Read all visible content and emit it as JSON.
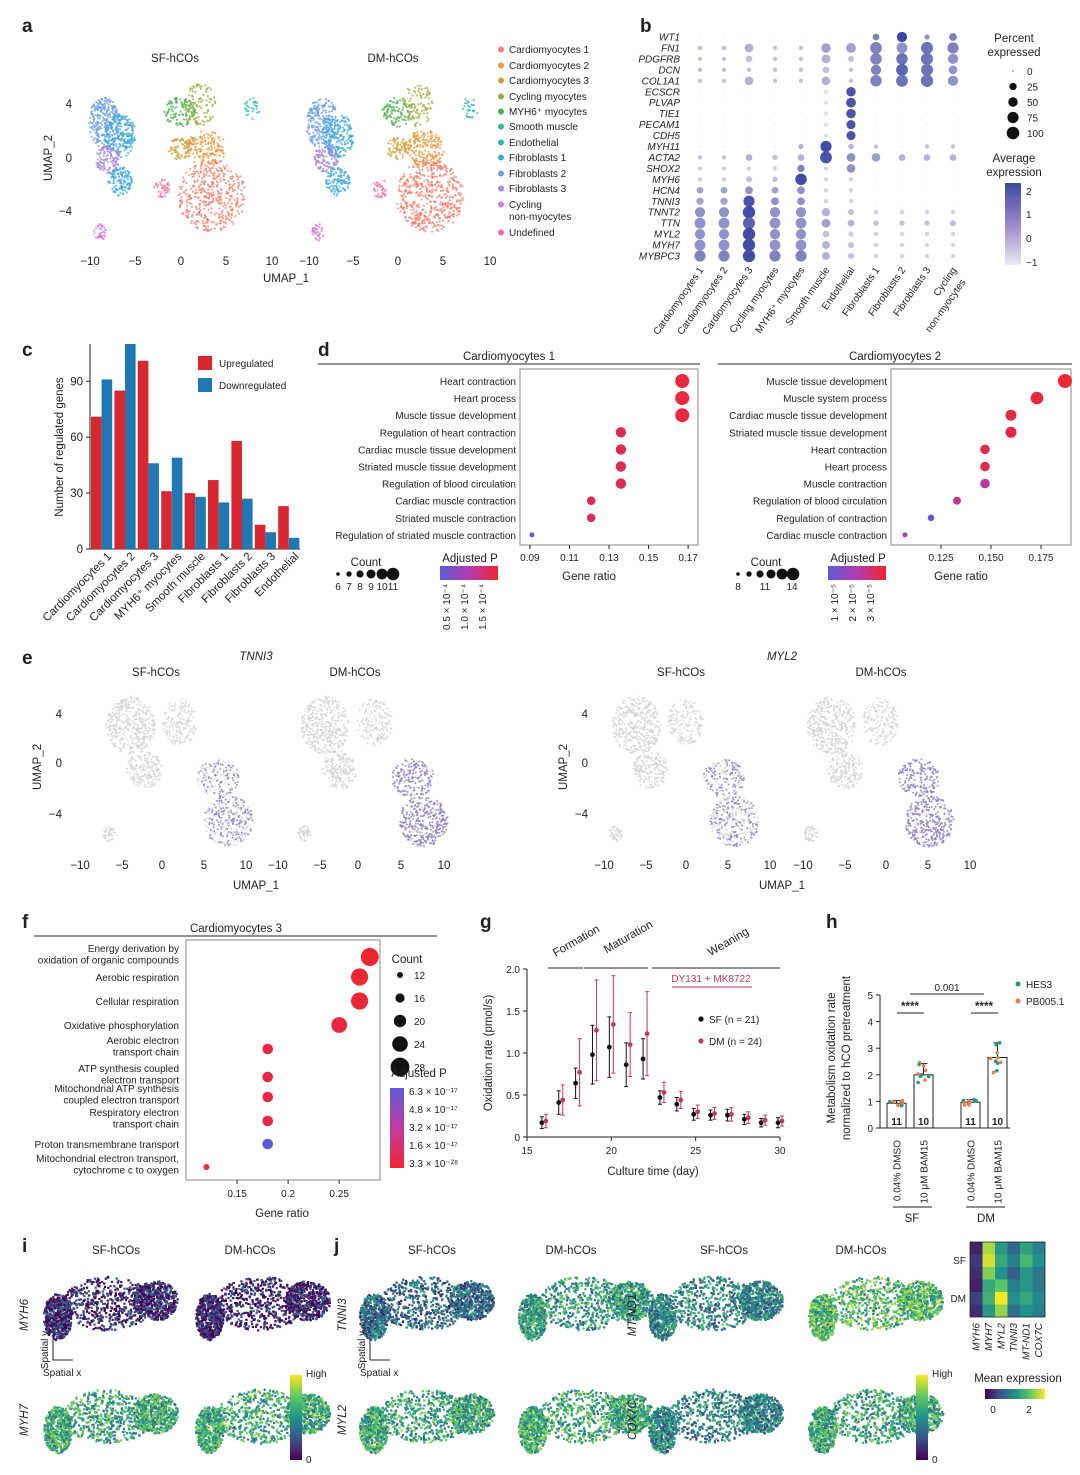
{
  "panels": {
    "a": "a",
    "b": "b",
    "c": "c",
    "d": "d",
    "e": "e",
    "f": "f",
    "g": "g",
    "h": "h",
    "i": "i",
    "j": "j"
  },
  "panel_a": {
    "titles": [
      "SF-hCOs",
      "DM-hCOs"
    ],
    "xlabel": "UMAP_1",
    "ylabel": "UMAP_2",
    "xticks": [
      "−10",
      "−5",
      "0",
      "5",
      "10"
    ],
    "yticks": [
      "4",
      "0",
      "−4"
    ],
    "legend": [
      {
        "label": "Cardiomyocytes 1",
        "color": "#f08070"
      },
      {
        "label": "Cardiomyocytes 2",
        "color": "#e89a3c"
      },
      {
        "label": "Cardiomyocytes 3",
        "color": "#c9a23a"
      },
      {
        "label": "Cycling myocytes",
        "color": "#9aac3a"
      },
      {
        "label": "MYH6⁺ myocytes",
        "color": "#4cb050"
      },
      {
        "label": "Smooth muscle",
        "color": "#3fb38b"
      },
      {
        "label": "Endothelial",
        "color": "#2fb5b9"
      },
      {
        "label": "Fibroblasts 1",
        "color": "#3aa8df"
      },
      {
        "label": "Fibroblasts 2",
        "color": "#6e9fe6"
      },
      {
        "label": "Fibroblasts 3",
        "color": "#a58ae2"
      },
      {
        "label": "Cycling",
        "color": "#d57ad6"
      },
      {
        "label": "non-myocytes",
        "color": "#d57ad6"
      },
      {
        "label": "Undefined",
        "color": "#ec70a6"
      }
    ]
  },
  "panel_b": {
    "genes": [
      "WT1",
      "FN1",
      "PDGFRB",
      "DCN",
      "COL1A1",
      "ECSCR",
      "PLVAP",
      "TIE1",
      "PECAM1",
      "CDH5",
      "MYH11",
      "ACTA2",
      "SHOX2",
      "MYH6",
      "HCN4",
      "TNNI3",
      "TNNT2",
      "TTN",
      "MYL2",
      "MYH7",
      "MYBPC3"
    ],
    "clusters": [
      "Cardiomyocytes 1",
      "Cardiomyocytes 2",
      "Cardiomyocytes 3",
      "Cycling myocytes",
      "MYH6⁺ myocytes",
      "Smooth muscle",
      "Endothelial",
      "Fibroblasts 1",
      "Fibroblasts 2",
      "Fibroblasts 3",
      "Cycling",
      "non-myocytes"
    ],
    "percent_title": [
      "Percent",
      "expressed"
    ],
    "percent_legend": [
      "0",
      "25",
      "50",
      "75",
      "100"
    ],
    "avg_title": [
      "Average",
      "expression"
    ],
    "avg_ticks": [
      "2",
      "1",
      "0",
      "−1"
    ]
  },
  "panel_c": {
    "ylabel": "Number of regulated genes",
    "yticks": [
      "90",
      "60",
      "30",
      "0"
    ],
    "legend": [
      {
        "label": "Upregulated",
        "color": "#d7282f"
      },
      {
        "label": "Downregulated",
        "color": "#1f78b4"
      }
    ]
  },
  "panel_d": {
    "left_title": "Cardiomyocytes 1",
    "right_title": "Cardiomyocytes 2",
    "xlabel": "Gene ratio",
    "left_xticks": [
      "0.09",
      "0.11",
      "0.13",
      "0.15",
      "0.17"
    ],
    "right_xticks": [
      "0.125",
      "0.150",
      "0.175"
    ],
    "count_label": "Count",
    "padj_label": "Adjusted P",
    "left_count_ticks": [
      "6",
      "7",
      "8",
      "9",
      "10",
      "11"
    ],
    "right_count_ticks": [
      "8",
      "11",
      "14"
    ],
    "left_p_ticks": [
      "0.5 × 10⁻⁴",
      "1.0 × 10⁻⁴",
      "1.5 × 10⁻⁴"
    ],
    "right_p_ticks": [
      "1 × 10⁻⁵",
      "2 × 10⁻⁵",
      "3 × 10⁻⁵"
    ]
  },
  "panel_e": {
    "gene1": "TNNI3",
    "gene2": "MYL2",
    "titles": [
      "SF-hCOs",
      "DM-hCOs",
      "SF-hCOs",
      "DM-hCOs"
    ],
    "xlabel": "UMAP_1",
    "ylabel": "UMAP_2",
    "xticks": [
      "−10",
      "−5",
      "0",
      "5",
      "10"
    ],
    "yticks": [
      "4",
      "0",
      "−4"
    ]
  },
  "panel_f": {
    "title": "Cardiomyocytes 3",
    "xlabel": "Gene ratio",
    "xticks": [
      "0.15",
      "0.2",
      "0.25"
    ],
    "count_label": "Count",
    "count_ticks": [
      "12",
      "16",
      "20",
      "24",
      "28"
    ],
    "padj_label": "Adjusted P",
    "p_ticks": [
      "6.3 × 10⁻¹⁷",
      "4.8 × 10⁻¹⁷",
      "3.2 × 10⁻¹⁷",
      "1.6 × 10⁻¹⁷",
      "3.3 × 10⁻²⁸"
    ]
  },
  "panel_g": {
    "phases": [
      "Formation",
      "Maturation",
      "Weaning"
    ],
    "treatment": "DY131 + MK8722",
    "xlabel": "Culture time (day)",
    "ylabel": "Oxidation rate (pmol/s)",
    "xticks": [
      "15",
      "20",
      "25",
      "30"
    ],
    "yticks": [
      "2.0",
      "1.5",
      "1.0",
      "0.5",
      "0"
    ],
    "legend": [
      {
        "label": "SF (n = 21)",
        "color": "#111111"
      },
      {
        "label": "DM (n = 24)",
        "color": "#c0395a"
      }
    ]
  },
  "panel_h": {
    "ylabel": [
      "Metabolism oxidation rate",
      "normalized to hCO pretreatment"
    ],
    "yticks": [
      "5",
      "4",
      "3",
      "2",
      "1",
      "0"
    ],
    "legend": [
      {
        "label": "HES3",
        "color": "#1a9c7a"
      },
      {
        "label": "PB005.1",
        "color": "#ef7c52"
      }
    ],
    "pval": "0.001",
    "stars": "****",
    "groups": [
      "SF",
      "DM"
    ],
    "conditions": [
      "0.04% DMSO",
      "10 μM BAM15"
    ]
  },
  "panel_i": {
    "titles": [
      "SF-hCOs",
      "DM-hCOs"
    ],
    "genes": [
      "MYH6",
      "MYH7"
    ],
    "spatial_y": "Spatial y",
    "spatial_x": "Spatial x",
    "scale_high": "High",
    "scale_low": "0"
  },
  "panel_j": {
    "titles": [
      "SF-hCOs",
      "DM-hCOs",
      "SF-hCOs",
      "DM-hCOs"
    ],
    "genes": [
      "TNNI3",
      "MYL2",
      "MT-ND1",
      "COX7C"
    ],
    "spatial_y": "Spatial y",
    "spatial_x": "Spatial x",
    "scale_high": "High",
    "scale_low": "0",
    "heatmap_rows": [
      "SF",
      "DM"
    ],
    "heatmap_cols": [
      "MYH6",
      "MYH7",
      "MYL2",
      "TNNI3",
      "MT-ND1",
      "COX7C"
    ],
    "heatmap_title": "Mean expression",
    "heatmap_ticks": [
      "0",
      "2"
    ]
  },
  "chart_data": [
    {
      "panel": "c",
      "type": "bar",
      "categories": [
        "Cardiomyocytes 1",
        "Cardiomyocytes 2",
        "Cardiomyocytes 3",
        "MYH6⁺ myocytes",
        "Smooth muscle",
        "Fibroblasts 1",
        "Fibroblasts 2",
        "Fibroblasts 3",
        "Endothelial"
      ],
      "series": [
        {
          "name": "Upregulated",
          "values": [
            71,
            85,
            101,
            31,
            30,
            37,
            58,
            13,
            23
          ]
        },
        {
          "name": "Downregulated",
          "values": [
            91,
            110,
            46,
            49,
            28,
            25,
            27,
            9,
            6
          ]
        }
      ],
      "ylabel": "Number of regulated genes",
      "ylim": [
        0,
        110
      ]
    },
    {
      "panel": "d-left",
      "type": "scatter",
      "title": "Cardiomyocytes 1",
      "terms": [
        "Heart contraction",
        "Heart process",
        "Muscle tissue development",
        "Regulation of heart contraction",
        "Cardiac muscle tissue development",
        "Striated muscle tissue development",
        "Regulation of blood circulation",
        "Cardiac muscle contraction",
        "Striated muscle contraction",
        "Regulation of striated muscle contraction"
      ],
      "gene_ratio": [
        0.167,
        0.167,
        0.167,
        0.136,
        0.136,
        0.136,
        0.136,
        0.121,
        0.121,
        0.091
      ],
      "count": [
        11,
        11,
        11,
        9,
        9,
        9,
        9,
        8,
        8,
        6
      ],
      "padj": [
        1e-05,
        1e-05,
        1e-05,
        5e-05,
        5e-05,
        5e-05,
        5e-05,
        5e-05,
        5e-05,
        0.00016
      ],
      "xlim": [
        0.085,
        0.175
      ],
      "xlabel": "Gene ratio"
    },
    {
      "panel": "d-right",
      "type": "scatter",
      "title": "Cardiomyocytes 2",
      "terms": [
        "Muscle tissue development",
        "Muscle system process",
        "Cardiac muscle tissue development",
        "Striated muscle tissue development",
        "Heart contraction",
        "Heart process",
        "Muscle contraction",
        "Regulation of blood circulation",
        "Regulation of contraction",
        "Cardiac muscle contraction"
      ],
      "gene_ratio": [
        0.187,
        0.173,
        0.16,
        0.16,
        0.147,
        0.147,
        0.147,
        0.133,
        0.12,
        0.107
      ],
      "count": [
        14,
        13,
        12,
        12,
        11,
        11,
        11,
        10,
        9,
        8
      ],
      "padj": [
        2e-06,
        3e-06,
        5e-06,
        5e-06,
        1e-05,
        1e-05,
        2e-05,
        2.5e-05,
        3e-05,
        2.5e-05
      ],
      "xlim": [
        0.1,
        0.19
      ],
      "xlabel": "Gene ratio"
    },
    {
      "panel": "f",
      "type": "scatter",
      "title": "Cardiomyocytes 3",
      "terms": [
        "Energy derivation by|oxidation of organic compounds",
        "Aerobic respiration",
        "Cellular respiration",
        "Oxidative phosphorylation",
        "Aerobic electron|transport chain",
        "ATP synthesis coupled|electron transport",
        "Mitochondrial ATP synthesis|coupled electron transport",
        "Respiratory electron|transport chain",
        "Proton transmembrane transport",
        "Mitochondrial electron transport,|cytochrome c to oxygen"
      ],
      "gene_ratio": [
        0.28,
        0.27,
        0.27,
        0.25,
        0.18,
        0.18,
        0.18,
        0.18,
        0.18,
        0.12
      ],
      "count": [
        28,
        27,
        27,
        25,
        18,
        18,
        18,
        18,
        18,
        12
      ],
      "padj": [
        "3.3e-28",
        "3.3e-28",
        "3.3e-28",
        "1e-25",
        "1e-20",
        "1e-20",
        "1e-20",
        "1e-20",
        "6.3e-17",
        "1e-20"
      ],
      "xlim": [
        0.1,
        0.29
      ],
      "xlabel": "Gene ratio"
    },
    {
      "panel": "g",
      "type": "line",
      "xlabel": "Culture time (day)",
      "ylabel": "Oxidation rate (pmol/s)",
      "xlim": [
        15,
        30
      ],
      "ylim": [
        0,
        2.0
      ],
      "series": [
        {
          "name": "SF",
          "x": [
            16,
            17,
            18,
            19,
            20,
            21,
            22,
            23,
            24,
            25,
            26,
            27,
            28,
            29,
            30
          ],
          "values": [
            0.17,
            0.41,
            0.64,
            0.98,
            1.07,
            0.86,
            0.93,
            0.47,
            0.39,
            0.27,
            0.26,
            0.26,
            0.21,
            0.17,
            0.17
          ],
          "sd": [
            0.07,
            0.14,
            0.18,
            0.35,
            0.36,
            0.26,
            0.24,
            0.08,
            0.08,
            0.07,
            0.06,
            0.07,
            0.06,
            0.05,
            0.06
          ]
        },
        {
          "name": "DM",
          "x": [
            16,
            17,
            18,
            19,
            20,
            21,
            22,
            23,
            24,
            25,
            26,
            27,
            28,
            29,
            30
          ],
          "values": [
            0.19,
            0.44,
            0.77,
            1.27,
            1.34,
            1.1,
            1.23,
            0.53,
            0.44,
            0.3,
            0.28,
            0.27,
            0.23,
            0.2,
            0.19
          ],
          "sd": [
            0.08,
            0.18,
            0.4,
            0.6,
            0.58,
            0.38,
            0.5,
            0.12,
            0.1,
            0.08,
            0.07,
            0.08,
            0.07,
            0.06,
            0.06
          ]
        }
      ]
    },
    {
      "panel": "h",
      "type": "bar",
      "categories": [
        "SF 0.04% DMSO",
        "SF 10 μM BAM15",
        "DM 0.04% DMSO",
        "DM 10 μM BAM15"
      ],
      "values": [
        0.93,
        2.0,
        0.97,
        2.65
      ],
      "sd": [
        0.1,
        0.42,
        0.1,
        0.55
      ],
      "n": [
        "11",
        "10",
        "11",
        "10"
      ],
      "ylim": [
        0,
        5
      ],
      "ylabel": "Metabolism oxidation rate normalized to hCO pretreatment"
    },
    {
      "panel": "j-heatmap",
      "type": "heatmap",
      "rows": [
        "SF",
        "DM"
      ],
      "columns": [
        "MYH6",
        "MYH7",
        "MYL2",
        "TNNI3",
        "MT-ND1",
        "COX7C"
      ],
      "subrows_per_group": 3,
      "values": [
        [
          0.3,
          2.6,
          1.6,
          1.0,
          1.7,
          1.3
        ],
        [
          0.5,
          2.8,
          1.8,
          1.3,
          2.0,
          1.5
        ],
        [
          0.4,
          2.4,
          1.5,
          0.9,
          1.6,
          1.2
        ],
        [
          0.3,
          1.8,
          2.2,
          1.3,
          1.6,
          1.2
        ],
        [
          0.6,
          1.9,
          3.0,
          1.5,
          1.8,
          1.4
        ],
        [
          0.4,
          1.6,
          2.5,
          1.1,
          1.5,
          1.3
        ]
      ],
      "colorbar_ticks": [
        "0",
        "2"
      ]
    }
  ]
}
